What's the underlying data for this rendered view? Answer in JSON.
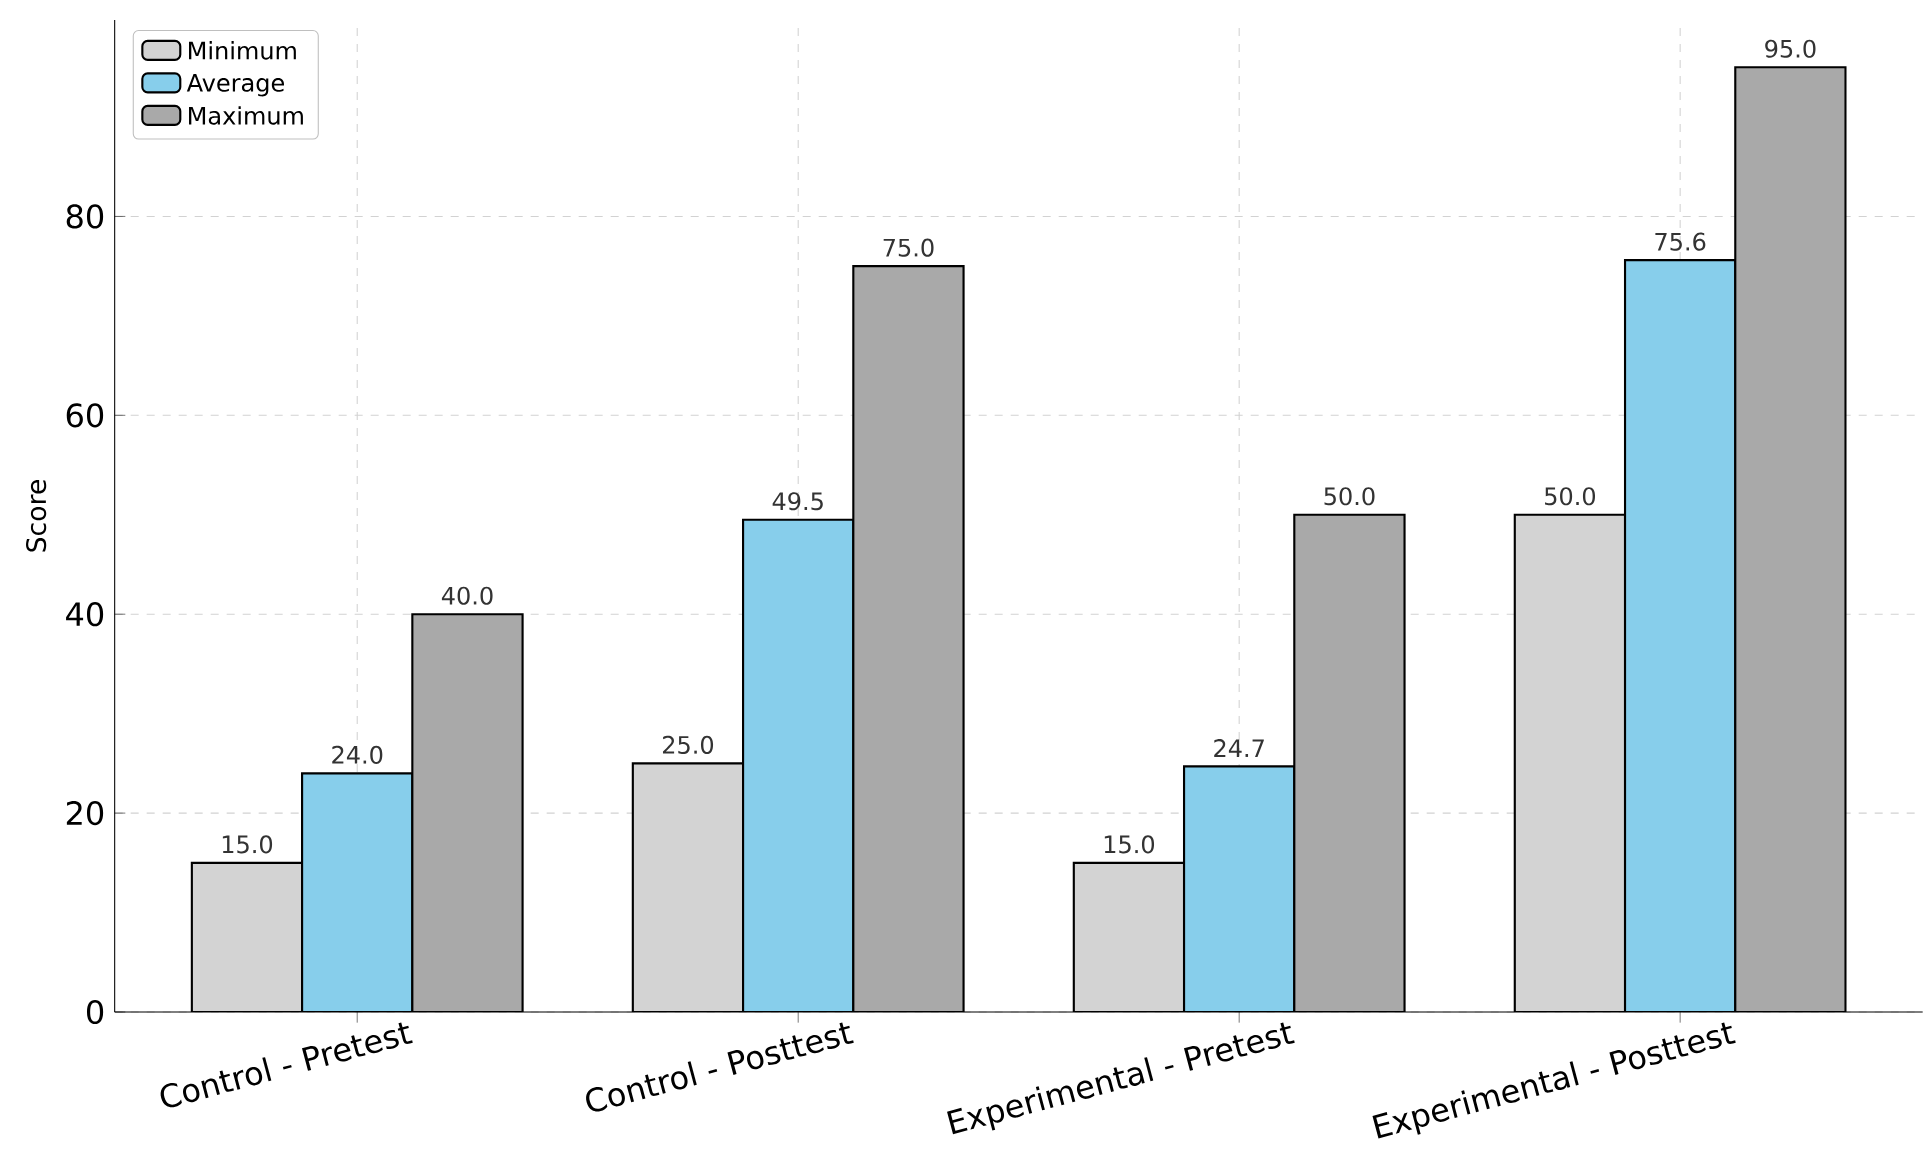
{
  "chart_data": {
    "type": "bar",
    "ylabel": "Score",
    "categories": [
      "Control - Pretest",
      "Control - Posttest",
      "Experimental - Pretest",
      "Experimental - Posttest"
    ],
    "series": [
      {
        "name": "Minimum",
        "color": "#d3d3d3",
        "values": [
          15.0,
          25.0,
          15.0,
          50.0
        ],
        "value_labels": [
          "15.0",
          "25.0",
          "15.0",
          "50.0"
        ]
      },
      {
        "name": "Average",
        "color": "#87ceeb",
        "values": [
          24.0,
          49.5,
          24.7,
          75.6
        ],
        "value_labels": [
          "24.0",
          "49.5",
          "24.7",
          "75.6"
        ]
      },
      {
        "name": "Maximum",
        "color": "#a9a9a9",
        "values": [
          40.0,
          75.0,
          50.0,
          95.0
        ],
        "value_labels": [
          "40.0",
          "75.0",
          "50.0",
          "95.0"
        ]
      }
    ],
    "ylim": [
      0,
      99.75
    ],
    "yticks": [
      0,
      20,
      40,
      60,
      80
    ],
    "grid": true,
    "legend": "top left"
  }
}
